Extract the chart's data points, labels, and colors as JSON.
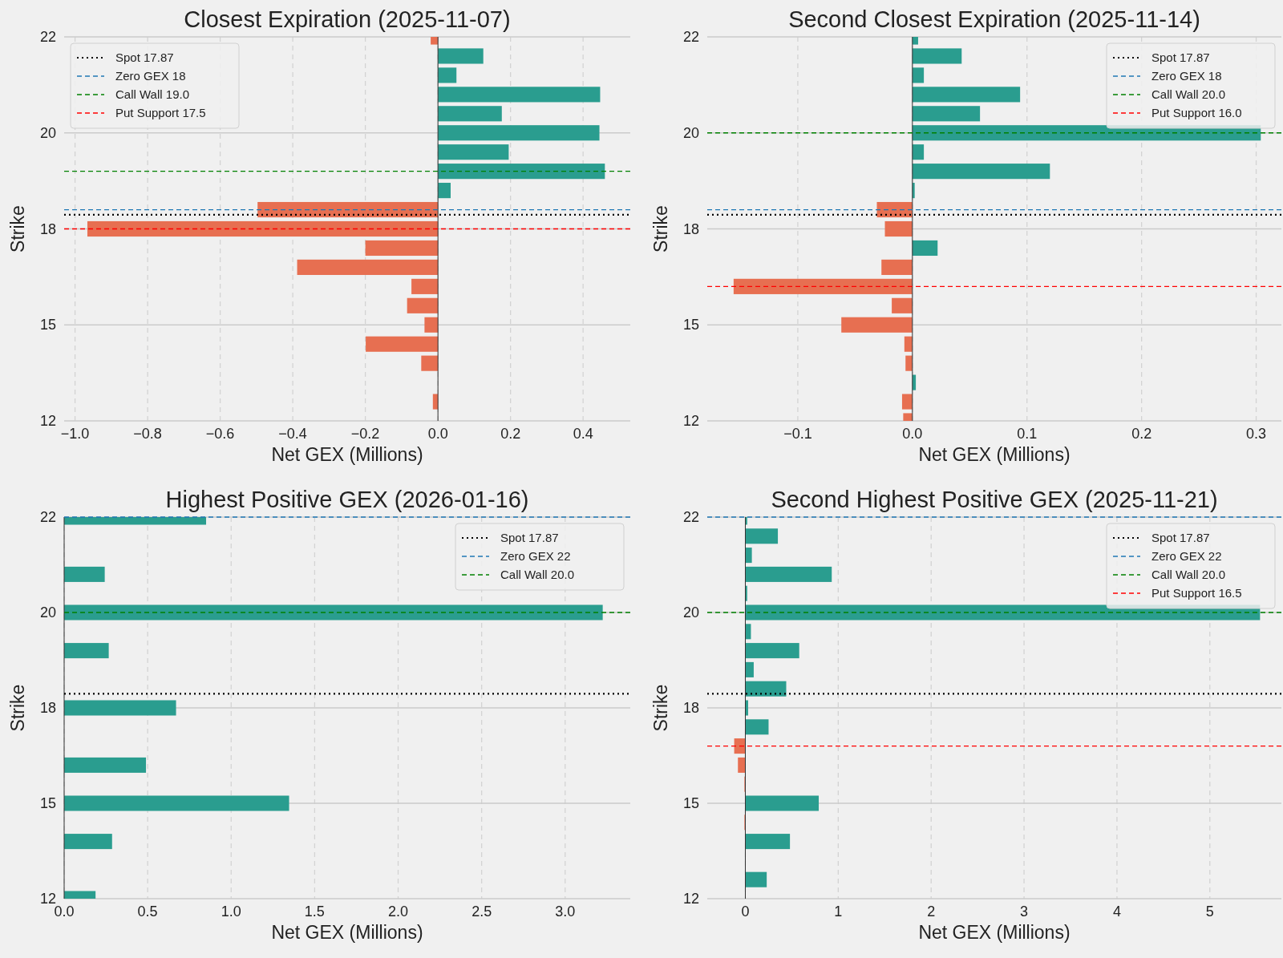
{
  "chart_data": [
    {
      "type": "bar",
      "orientation": "horizontal",
      "title": "Closest Expiration (2025-11-07)",
      "xlabel": "Net GEX (Millions)",
      "ylabel": "Strike",
      "grid": true,
      "legend": "top left",
      "x": [
        22.5,
        22,
        21.5,
        21,
        20.5,
        20,
        19.5,
        19,
        18.5,
        18,
        17.5,
        17,
        16.5,
        16,
        15.5,
        15,
        14.5,
        14,
        13.5,
        13,
        12.5
      ],
      "values": [
        -0.02,
        0.125,
        0.051,
        0.447,
        0.176,
        0.445,
        0.195,
        0.46,
        0.035,
        -0.497,
        -0.966,
        -0.2,
        -0.388,
        -0.073,
        -0.085,
        -0.037,
        -0.199,
        -0.046,
        0,
        -0.014,
        0
      ],
      "colors": [
        "#e76f51",
        "#2a9d8f",
        "#2a9d8f",
        "#2a9d8f",
        "#2a9d8f",
        "#2a9d8f",
        "#2a9d8f",
        "#2a9d8f",
        "#2a9d8f",
        "#e76f51",
        "#e76f51",
        "#e76f51",
        "#e76f51",
        "#e76f51",
        "#e76f51",
        "#e76f51",
        "#e76f51",
        "#e76f51",
        "#e76f51",
        "#e76f51",
        "#e76f51"
      ],
      "xlim": [
        -1.03,
        0.53
      ],
      "xticks": [
        {
          "value": -1,
          "label": "−1.0"
        },
        {
          "value": -0.8,
          "label": "−0.8"
        },
        {
          "value": -0.6,
          "label": "−0.6"
        },
        {
          "value": -0.4,
          "label": "−0.4"
        },
        {
          "value": -0.2,
          "label": "−0.2"
        },
        {
          "value": 0,
          "label": "0.0"
        },
        {
          "value": 0.2,
          "label": "0.2"
        },
        {
          "value": 0.4,
          "label": "0.4"
        }
      ],
      "ylim": [
        12.5,
        22.5
      ],
      "yticks": [
        {
          "value": 22.5,
          "label": "22"
        },
        {
          "value": 20,
          "label": "20"
        },
        {
          "value": 17.5,
          "label": "18"
        },
        {
          "value": 15,
          "label": "15"
        },
        {
          "value": 12.5,
          "label": "12"
        }
      ],
      "ref_lines": [
        {
          "axis": "y",
          "value": 17.87,
          "label": "Spot 17.87",
          "color": "#000000",
          "line_style": "dotted"
        },
        {
          "axis": "y",
          "value": 18,
          "label": "Zero GEX 18",
          "color": "#1f77b4",
          "line_style": "dashed"
        },
        {
          "axis": "y",
          "value": 19.0,
          "label": "Call Wall 19.0",
          "color": "#008000",
          "line_style": "dashed"
        },
        {
          "axis": "y",
          "value": 17.5,
          "label": "Put Support 17.5",
          "color": "#ff0000",
          "line_style": "dashed"
        }
      ]
    },
    {
      "type": "bar",
      "orientation": "horizontal",
      "title": "Second Closest Expiration (2025-11-14)",
      "xlabel": "Net GEX (Millions)",
      "ylabel": "Strike",
      "grid": true,
      "legend": "top right",
      "x": [
        22.5,
        22,
        21.5,
        21,
        20.5,
        20,
        19.5,
        19,
        18.5,
        18,
        17.5,
        17,
        16.5,
        16,
        15.5,
        15,
        14.5,
        14,
        13.5,
        13,
        12.5
      ],
      "values": [
        0.005,
        0.043,
        0.01,
        0.094,
        0.059,
        0.304,
        0.01,
        0.12,
        0.002,
        -0.031,
        -0.024,
        0.022,
        -0.027,
        -0.156,
        -0.018,
        -0.062,
        -0.007,
        -0.006,
        0.003,
        -0.009,
        -0.008
      ],
      "colors": [
        "#2a9d8f",
        "#2a9d8f",
        "#2a9d8f",
        "#2a9d8f",
        "#2a9d8f",
        "#2a9d8f",
        "#2a9d8f",
        "#2a9d8f",
        "#2a9d8f",
        "#e76f51",
        "#e76f51",
        "#2a9d8f",
        "#e76f51",
        "#e76f51",
        "#e76f51",
        "#e76f51",
        "#e76f51",
        "#e76f51",
        "#2a9d8f",
        "#e76f51",
        "#e76f51"
      ],
      "xlim": [
        -0.179,
        0.322
      ],
      "xticks": [
        {
          "value": -0.1,
          "label": "−0.1"
        },
        {
          "value": 0,
          "label": "0.0"
        },
        {
          "value": 0.1,
          "label": "0.1"
        },
        {
          "value": 0.2,
          "label": "0.2"
        },
        {
          "value": 0.3,
          "label": "0.3"
        }
      ],
      "ylim": [
        12.5,
        22.5
      ],
      "yticks": [
        {
          "value": 22.5,
          "label": "22"
        },
        {
          "value": 20,
          "label": "20"
        },
        {
          "value": 17.5,
          "label": "18"
        },
        {
          "value": 15,
          "label": "15"
        },
        {
          "value": 12.5,
          "label": "12"
        }
      ],
      "ref_lines": [
        {
          "axis": "y",
          "value": 17.87,
          "label": "Spot 17.87",
          "color": "#000000",
          "line_style": "dotted"
        },
        {
          "axis": "y",
          "value": 18,
          "label": "Zero GEX 18",
          "color": "#1f77b4",
          "line_style": "dashed"
        },
        {
          "axis": "y",
          "value": 20.0,
          "label": "Call Wall 20.0",
          "color": "#008000",
          "line_style": "dashed"
        },
        {
          "axis": "y",
          "value": 16.0,
          "label": "Put Support 16.0",
          "color": "#ff0000",
          "line_style": "dashed"
        }
      ]
    },
    {
      "type": "bar",
      "orientation": "horizontal",
      "title": "Highest Positive GEX (2026-01-16)",
      "xlabel": "Net GEX (Millions)",
      "ylabel": "Strike",
      "grid": true,
      "legend": "top right",
      "x": [
        22.5,
        21,
        20,
        19,
        17.5,
        16,
        15,
        14,
        12.5
      ],
      "values": [
        0.85,
        0.243,
        3.225,
        0.267,
        0.67,
        0.49,
        1.347,
        0.287,
        0.188
      ],
      "colors": [
        "#2a9d8f",
        "#2a9d8f",
        "#2a9d8f",
        "#2a9d8f",
        "#2a9d8f",
        "#2a9d8f",
        "#2a9d8f",
        "#2a9d8f",
        "#2a9d8f"
      ],
      "xlim": [
        0,
        3.39
      ],
      "xticks": [
        {
          "value": 0,
          "label": "0.0"
        },
        {
          "value": 0.5,
          "label": "0.5"
        },
        {
          "value": 1,
          "label": "1.0"
        },
        {
          "value": 1.5,
          "label": "1.5"
        },
        {
          "value": 2,
          "label": "2.0"
        },
        {
          "value": 2.5,
          "label": "2.5"
        },
        {
          "value": 3,
          "label": "3.0"
        }
      ],
      "ylim": [
        12.5,
        22.5
      ],
      "yticks": [
        {
          "value": 22.5,
          "label": "22"
        },
        {
          "value": 20,
          "label": "20"
        },
        {
          "value": 17.5,
          "label": "18"
        },
        {
          "value": 15,
          "label": "15"
        },
        {
          "value": 12.5,
          "label": "12"
        }
      ],
      "ref_lines": [
        {
          "axis": "y",
          "value": 17.87,
          "label": "Spot 17.87",
          "color": "#000000",
          "line_style": "dotted"
        },
        {
          "axis": "y",
          "value": 22.5,
          "label": "Zero GEX 22",
          "color": "#1f77b4",
          "line_style": "dashed"
        },
        {
          "axis": "y",
          "value": 20.0,
          "label": "Call Wall 20.0",
          "color": "#008000",
          "line_style": "dashed"
        }
      ]
    },
    {
      "type": "bar",
      "orientation": "horizontal",
      "title": "Second Highest Positive GEX (2025-11-21)",
      "xlabel": "Net GEX (Millions)",
      "ylabel": "Strike",
      "grid": true,
      "legend": "top right",
      "x": [
        22.5,
        22,
        21.5,
        21,
        20.5,
        20,
        19.5,
        19,
        18.5,
        18,
        17.5,
        17,
        16.5,
        16,
        15.5,
        15,
        14.5,
        14,
        13.5,
        13,
        12.5
      ],
      "values": [
        0.02,
        0.35,
        0.07,
        0.93,
        0.02,
        5.54,
        0.06,
        0.58,
        0.09,
        0.44,
        0.03,
        0.25,
        -0.12,
        -0.08,
        -0.01,
        0.79,
        -0.01,
        0.48,
        0,
        0.23,
        0
      ],
      "colors": [
        "#2a9d8f",
        "#2a9d8f",
        "#2a9d8f",
        "#2a9d8f",
        "#2a9d8f",
        "#2a9d8f",
        "#2a9d8f",
        "#2a9d8f",
        "#2a9d8f",
        "#2a9d8f",
        "#2a9d8f",
        "#2a9d8f",
        "#e76f51",
        "#e76f51",
        "#e76f51",
        "#2a9d8f",
        "#e76f51",
        "#2a9d8f",
        "#2a9d8f",
        "#2a9d8f",
        "#2a9d8f"
      ],
      "xlim": [
        -0.41,
        5.77
      ],
      "xticks": [
        0,
        1,
        2,
        3,
        4,
        5
      ],
      "ylim": [
        12.5,
        22.5
      ],
      "yticks": [
        {
          "value": 22.5,
          "label": "22"
        },
        {
          "value": 20,
          "label": "20"
        },
        {
          "value": 17.5,
          "label": "18"
        },
        {
          "value": 15,
          "label": "15"
        },
        {
          "value": 12.5,
          "label": "12"
        }
      ],
      "ref_lines": [
        {
          "axis": "y",
          "value": 17.87,
          "label": "Spot 17.87",
          "color": "#000000",
          "line_style": "dotted"
        },
        {
          "axis": "y",
          "value": 22.5,
          "label": "Zero GEX 22",
          "color": "#1f77b4",
          "line_style": "dashed"
        },
        {
          "axis": "y",
          "value": 20.0,
          "label": "Call Wall 20.0",
          "color": "#008000",
          "line_style": "dashed"
        },
        {
          "axis": "y",
          "value": 16.5,
          "label": "Put Support 16.5",
          "color": "#ff0000",
          "line_style": "dashed"
        }
      ]
    }
  ]
}
